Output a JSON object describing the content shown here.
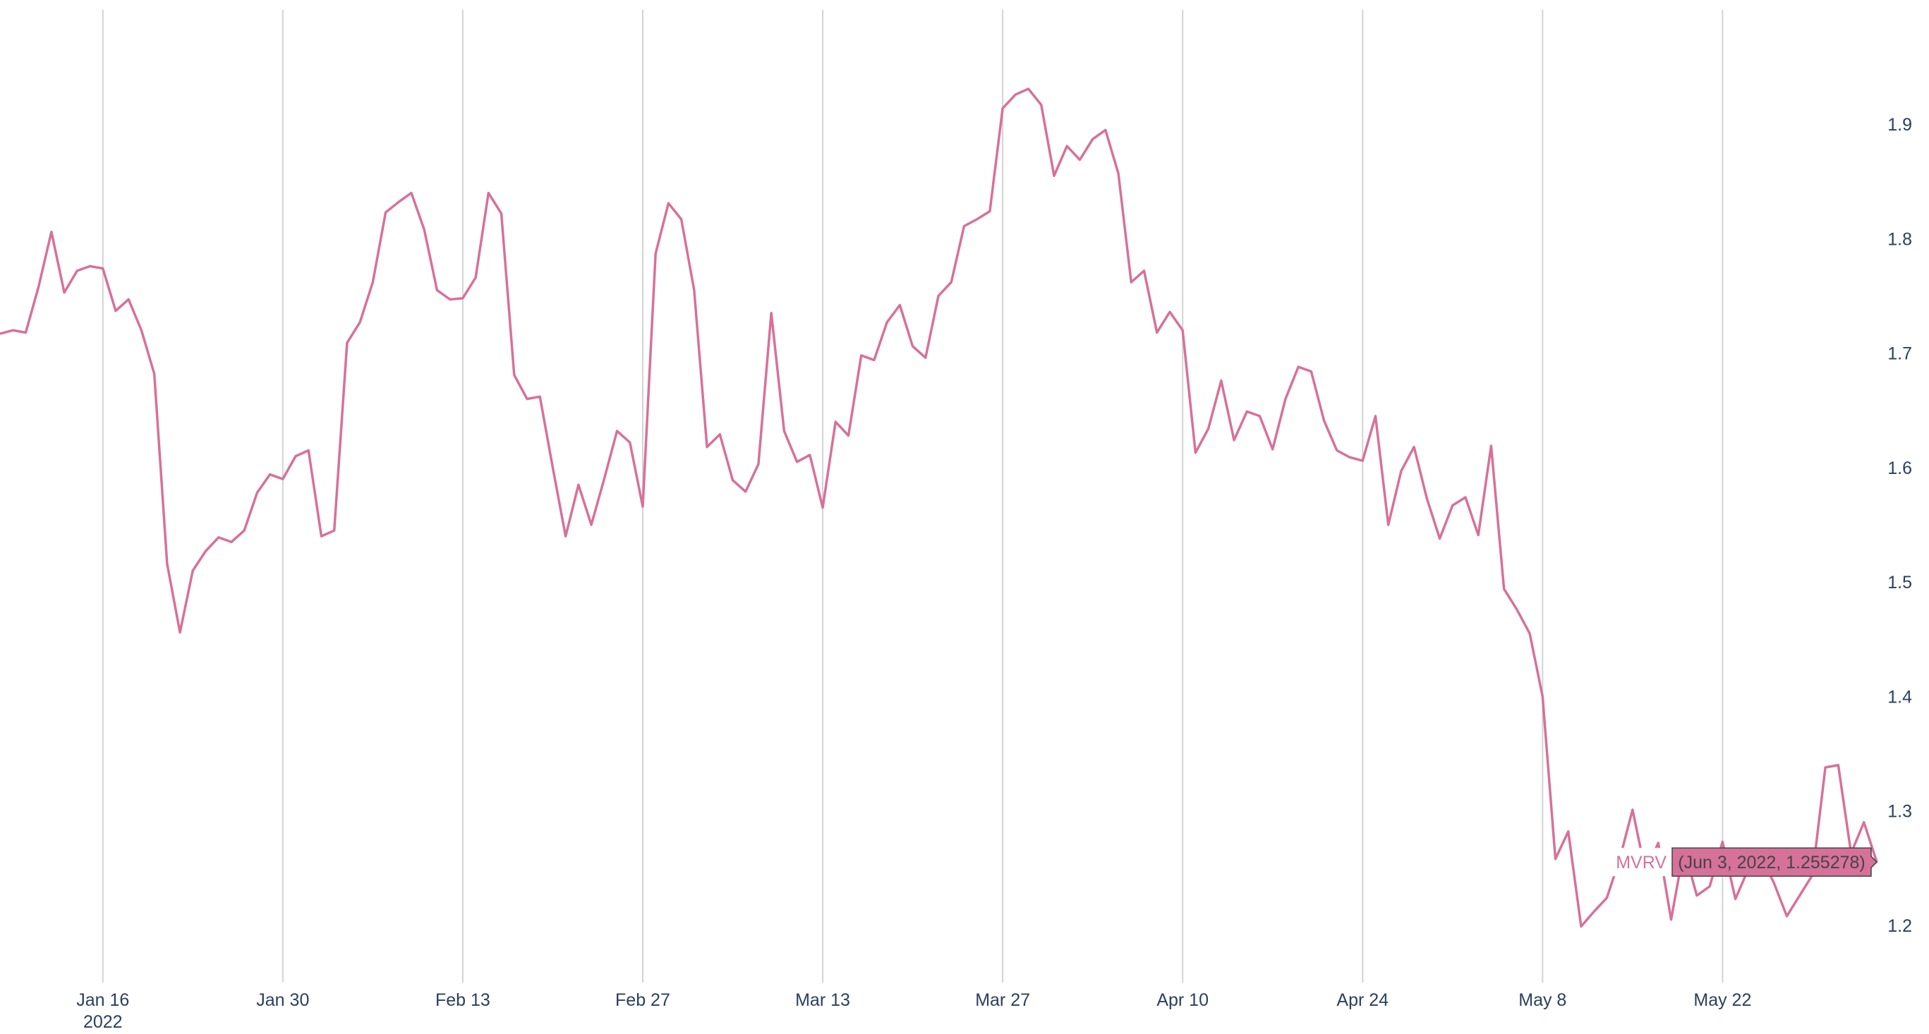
{
  "chart_data": {
    "type": "line",
    "x_ticks": [
      {
        "date": "2022-01-16",
        "label": "Jan 16",
        "sublabel": "2022"
      },
      {
        "date": "2022-01-30",
        "label": "Jan 30"
      },
      {
        "date": "2022-02-13",
        "label": "Feb 13"
      },
      {
        "date": "2022-02-27",
        "label": "Feb 27"
      },
      {
        "date": "2022-03-13",
        "label": "Mar 13"
      },
      {
        "date": "2022-03-27",
        "label": "Mar 27"
      },
      {
        "date": "2022-04-10",
        "label": "Apr 10"
      },
      {
        "date": "2022-04-24",
        "label": "Apr 24"
      },
      {
        "date": "2022-05-08",
        "label": "May 8"
      },
      {
        "date": "2022-05-22",
        "label": "May 22"
      }
    ],
    "y_ticks": [
      1.2,
      1.3,
      1.4,
      1.5,
      1.6,
      1.7,
      1.8,
      1.9
    ],
    "xlim": [
      "2022-01-08",
      "2022-06-03"
    ],
    "ylim": [
      1.15,
      2.0
    ],
    "y_axis_side": "right",
    "grid": {
      "x": true,
      "y": false
    },
    "series": [
      {
        "name": "MVRV",
        "color": "#d6719a",
        "x": [
          "2022-01-08",
          "2022-01-09",
          "2022-01-10",
          "2022-01-11",
          "2022-01-12",
          "2022-01-13",
          "2022-01-14",
          "2022-01-15",
          "2022-01-16",
          "2022-01-17",
          "2022-01-18",
          "2022-01-19",
          "2022-01-20",
          "2022-01-21",
          "2022-01-22",
          "2022-01-23",
          "2022-01-24",
          "2022-01-25",
          "2022-01-26",
          "2022-01-27",
          "2022-01-28",
          "2022-01-29",
          "2022-01-30",
          "2022-01-31",
          "2022-02-01",
          "2022-02-02",
          "2022-02-03",
          "2022-02-04",
          "2022-02-05",
          "2022-02-06",
          "2022-02-07",
          "2022-02-08",
          "2022-02-09",
          "2022-02-10",
          "2022-02-11",
          "2022-02-12",
          "2022-02-13",
          "2022-02-14",
          "2022-02-15",
          "2022-02-16",
          "2022-02-17",
          "2022-02-18",
          "2022-02-19",
          "2022-02-20",
          "2022-02-21",
          "2022-02-22",
          "2022-02-23",
          "2022-02-24",
          "2022-02-25",
          "2022-02-26",
          "2022-02-27",
          "2022-02-28",
          "2022-03-01",
          "2022-03-02",
          "2022-03-03",
          "2022-03-04",
          "2022-03-05",
          "2022-03-06",
          "2022-03-07",
          "2022-03-08",
          "2022-03-09",
          "2022-03-10",
          "2022-03-11",
          "2022-03-12",
          "2022-03-13",
          "2022-03-14",
          "2022-03-15",
          "2022-03-16",
          "2022-03-17",
          "2022-03-18",
          "2022-03-19",
          "2022-03-20",
          "2022-03-21",
          "2022-03-22",
          "2022-03-23",
          "2022-03-24",
          "2022-03-25",
          "2022-03-26",
          "2022-03-27",
          "2022-03-28",
          "2022-03-29",
          "2022-03-30",
          "2022-03-31",
          "2022-04-01",
          "2022-04-02",
          "2022-04-03",
          "2022-04-04",
          "2022-04-05",
          "2022-04-06",
          "2022-04-07",
          "2022-04-08",
          "2022-04-09",
          "2022-04-10",
          "2022-04-11",
          "2022-04-12",
          "2022-04-13",
          "2022-04-14",
          "2022-04-15",
          "2022-04-16",
          "2022-04-17",
          "2022-04-18",
          "2022-04-19",
          "2022-04-20",
          "2022-04-21",
          "2022-04-22",
          "2022-04-23",
          "2022-04-24",
          "2022-04-25",
          "2022-04-26",
          "2022-04-27",
          "2022-04-28",
          "2022-04-29",
          "2022-04-30",
          "2022-05-01",
          "2022-05-02",
          "2022-05-03",
          "2022-05-04",
          "2022-05-05",
          "2022-05-06",
          "2022-05-07",
          "2022-05-08",
          "2022-05-09",
          "2022-05-10",
          "2022-05-11",
          "2022-05-12",
          "2022-05-13",
          "2022-05-14",
          "2022-05-15",
          "2022-05-16",
          "2022-05-17",
          "2022-05-18",
          "2022-05-19",
          "2022-05-20",
          "2022-05-21",
          "2022-05-22",
          "2022-05-23",
          "2022-05-24",
          "2022-05-25",
          "2022-05-26",
          "2022-05-27",
          "2022-05-28",
          "2022-05-29",
          "2022-05-30",
          "2022-05-31",
          "2022-06-01",
          "2022-06-02",
          "2022-06-03"
        ],
        "y": [
          1.717,
          1.72,
          1.718,
          1.758,
          1.806,
          1.753,
          1.772,
          1.776,
          1.774,
          1.737,
          1.747,
          1.72,
          1.682,
          1.516,
          1.456,
          1.51,
          1.527,
          1.539,
          1.535,
          1.545,
          1.578,
          1.594,
          1.59,
          1.61,
          1.615,
          1.54,
          1.545,
          1.709,
          1.727,
          1.762,
          1.823,
          1.832,
          1.84,
          1.808,
          1.755,
          1.747,
          1.748,
          1.766,
          1.84,
          1.822,
          1.681,
          1.66,
          1.662,
          1.6,
          1.54,
          1.585,
          1.55,
          1.59,
          1.632,
          1.622,
          1.566,
          1.787,
          1.831,
          1.817,
          1.755,
          1.618,
          1.629,
          1.589,
          1.579,
          1.603,
          1.735,
          1.632,
          1.605,
          1.611,
          1.565,
          1.64,
          1.628,
          1.698,
          1.694,
          1.727,
          1.742,
          1.706,
          1.696,
          1.75,
          1.762,
          1.811,
          1.817,
          1.824,
          1.914,
          1.926,
          1.931,
          1.917,
          1.855,
          1.881,
          1.869,
          1.887,
          1.895,
          1.857,
          1.762,
          1.772,
          1.718,
          1.736,
          1.72,
          1.613,
          1.634,
          1.676,
          1.624,
          1.649,
          1.645,
          1.616,
          1.66,
          1.688,
          1.684,
          1.641,
          1.615,
          1.609,
          1.606,
          1.645,
          1.55,
          1.597,
          1.618,
          1.573,
          1.538,
          1.567,
          1.574,
          1.541,
          1.619,
          1.494,
          1.476,
          1.455,
          1.4,
          1.258,
          1.282,
          1.199,
          1.212,
          1.224,
          1.258,
          1.301,
          1.247,
          1.272,
          1.205,
          1.267,
          1.226,
          1.234,
          1.273,
          1.223,
          1.249,
          1.26,
          1.237,
          1.208,
          1.226,
          1.244,
          1.338,
          1.34,
          1.263,
          1.29,
          1.255278
        ]
      }
    ],
    "hover": {
      "series_label": "MVRV",
      "text": "(Jun 3, 2022, 1.255278)",
      "date": "2022-06-03",
      "value": 1.255278
    }
  }
}
